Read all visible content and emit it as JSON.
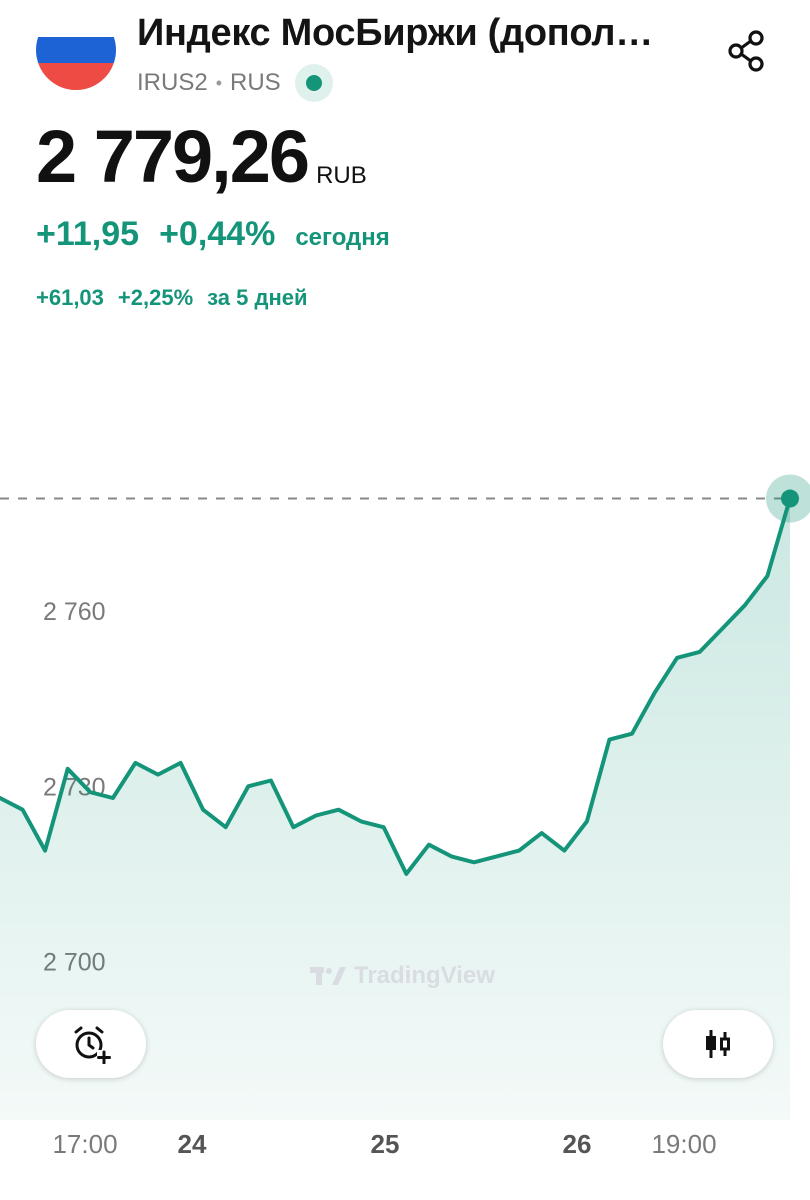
{
  "header": {
    "title": "Индекс МосБиржи (допол…",
    "ticker": "IRUS2",
    "separator": "•",
    "exchange": "RUS"
  },
  "quote": {
    "price": "2 779,26",
    "currency": "RUB",
    "change_abs": "+11,95",
    "change_pct": "+0,44%",
    "change_label": "сегодня",
    "five_day_abs": "+61,03",
    "five_day_pct": "+2,25%",
    "five_day_label": "за 5 дней"
  },
  "colors": {
    "accent": "#14957a",
    "flag_white": "#ffffff",
    "flag_blue": "#1e63d6",
    "flag_red": "#ef4b45"
  },
  "watermark": "TradingView",
  "icons": {
    "share": "share-icon",
    "alarm": "alarm-add-icon",
    "candles": "candlestick-icon",
    "live": "live-status-icon"
  },
  "chart_data": {
    "type": "area",
    "y_ticks": [
      "2 760",
      "2 730",
      "2 700"
    ],
    "x_ticks": [
      {
        "label": "17:00",
        "bold": false
      },
      {
        "label": "24",
        "bold": true
      },
      {
        "label": "25",
        "bold": true
      },
      {
        "label": "26",
        "bold": true
      },
      {
        "label": "19:00",
        "bold": false
      }
    ],
    "last_value": 2779.26,
    "ylim": [
      2690,
      2785
    ],
    "values": [
      2728,
      2726,
      2719,
      2733,
      2729,
      2728,
      2734,
      2732,
      2734,
      2726,
      2723,
      2730,
      2731,
      2723,
      2725,
      2726,
      2724,
      2723,
      2715,
      2720,
      2718,
      2717,
      2718,
      2719,
      2722,
      2719,
      2724,
      2738,
      2739,
      2746,
      2752,
      2753,
      2757,
      2761,
      2766,
      2779.26
    ]
  }
}
